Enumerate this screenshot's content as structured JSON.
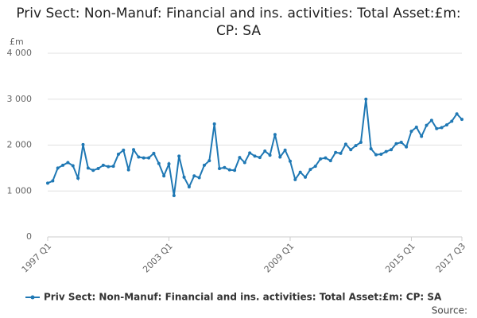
{
  "chart_data": {
    "type": "line",
    "title": "Priv Sect: Non-Manuf: Financial and ins. activities: Total Asset:£m: CP: SA",
    "y_unit": "£m",
    "source": "Source:",
    "categories": [
      "1997 Q1",
      null,
      null,
      null,
      null,
      null,
      null,
      null,
      null,
      null,
      null,
      null,
      null,
      null,
      null,
      null,
      null,
      null,
      null,
      null,
      null,
      null,
      null,
      null,
      "2003 Q1",
      null,
      null,
      null,
      null,
      null,
      null,
      null,
      null,
      null,
      null,
      null,
      null,
      null,
      null,
      null,
      null,
      null,
      null,
      null,
      null,
      null,
      null,
      null,
      "2009 Q1",
      null,
      null,
      null,
      null,
      null,
      null,
      null,
      null,
      null,
      null,
      null,
      null,
      null,
      null,
      null,
      null,
      null,
      null,
      null,
      null,
      null,
      null,
      null,
      "2015 Q1",
      null,
      null,
      null,
      null,
      null,
      null,
      null,
      null,
      null,
      "2017 Q3"
    ],
    "series": [
      {
        "name": "Priv Sect: Non-Manuf: Financial and ins. activities: Total Asset:£m: CP: SA",
        "color": "#1f78b4",
        "values": [
          1170,
          1220,
          1500,
          1560,
          1620,
          1550,
          1280,
          2010,
          1500,
          1450,
          1490,
          1560,
          1530,
          1540,
          1800,
          1890,
          1460,
          1900,
          1740,
          1720,
          1720,
          1820,
          1600,
          1330,
          1590,
          900,
          1760,
          1300,
          1090,
          1330,
          1290,
          1560,
          1660,
          2460,
          1490,
          1510,
          1460,
          1450,
          1730,
          1620,
          1830,
          1760,
          1730,
          1870,
          1780,
          2230,
          1740,
          1890,
          1650,
          1250,
          1410,
          1300,
          1470,
          1540,
          1700,
          1720,
          1660,
          1840,
          1820,
          2020,
          1900,
          1990,
          2060,
          3000,
          1920,
          1790,
          1800,
          1860,
          1900,
          2030,
          2060,
          1960,
          2300,
          2390,
          2190,
          2430,
          2540,
          2360,
          2380,
          2440,
          2520,
          2680,
          2560
        ]
      }
    ],
    "ylim": [
      0,
      4000
    ],
    "yticks": [
      0,
      {
        "value": 1000,
        "label": "1 000"
      },
      {
        "value": 2000,
        "label": "2 000"
      },
      {
        "value": 3000,
        "label": "3 000"
      },
      {
        "value": 4000,
        "label": "4 000"
      }
    ],
    "grid": true
  }
}
